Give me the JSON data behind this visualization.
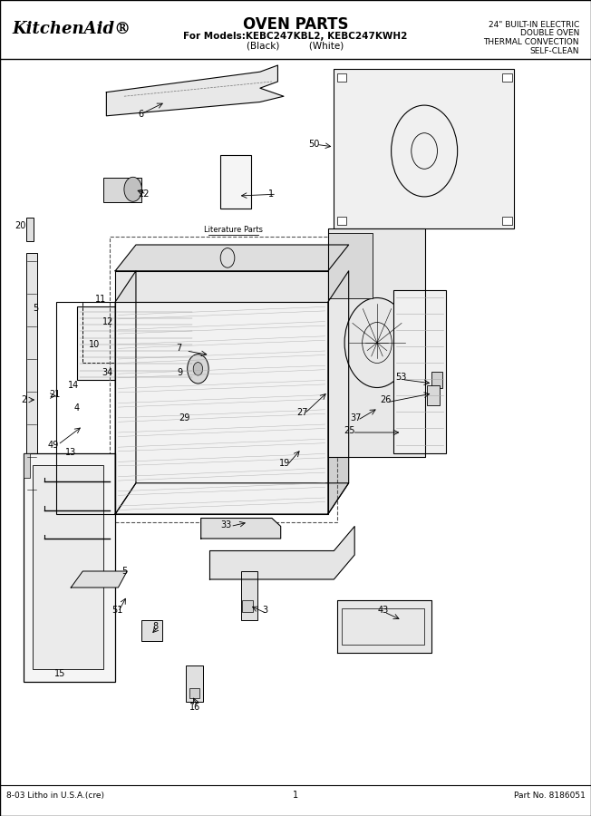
{
  "title": "OVEN PARTS",
  "subtitle1": "For Models:KEBC247KBL2, KEBC247KWH2",
  "subtitle2": "(Black)          (White)",
  "top_right_line1": "24\" BUILT-IN ELECTRIC",
  "top_right_line2": "DOUBLE OVEN",
  "top_right_line3": "THERMAL CONVECTION",
  "top_right_line4": "SELF-CLEAN",
  "brand": "KitchenAid",
  "brand_reg": "®",
  "footer_left": "8-03 Litho in U.S.A.(cre)",
  "footer_center": "1",
  "footer_right": "Part No. 8186051",
  "literature_parts": "Literature Parts",
  "bg_color": "#ffffff",
  "line_color": "#000000"
}
